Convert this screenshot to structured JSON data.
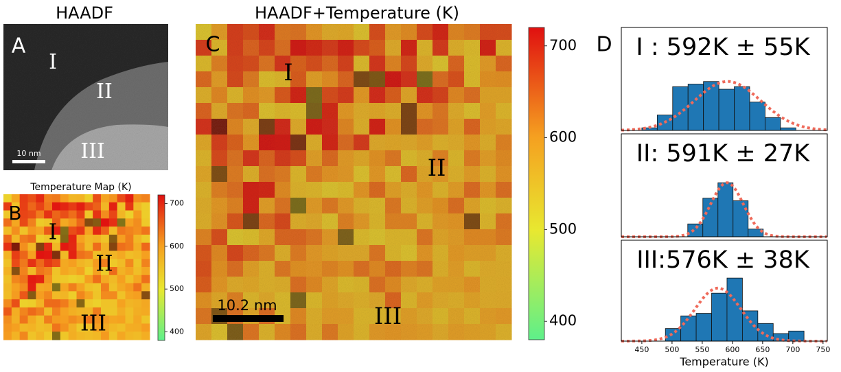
{
  "panel_a": {
    "letter": "A",
    "title": "HAADF",
    "regions": [
      "I",
      "II",
      "III"
    ],
    "scale_bar": "10 nm"
  },
  "panel_b": {
    "letter": "B",
    "title": "Temperature Map (K)",
    "regions": [
      "I",
      "II",
      "III"
    ],
    "colorbar": {
      "lim": [
        380,
        720
      ],
      "ticks": [
        400,
        500,
        600,
        700
      ]
    }
  },
  "panel_c": {
    "letter": "C",
    "title": "HAADF+Temperature (K)",
    "regions": [
      "I",
      "II",
      "III"
    ],
    "scale_bar": "10.2 nm",
    "colorbar": {
      "lim": [
        380,
        720
      ],
      "ticks": [
        400,
        500,
        600,
        700
      ]
    }
  },
  "panel_d": {
    "letter": "D"
  },
  "chart_data": [
    {
      "type": "histogram",
      "title": "I : 592K ± 55K",
      "bins": [
        450,
        475.5,
        501,
        526.5,
        552,
        577.5,
        603,
        628.5,
        654,
        679.5,
        705
      ],
      "values": [
        1,
        6,
        17,
        18,
        19,
        16,
        17,
        11,
        5,
        1
      ],
      "color": "#1f77b4",
      "xlim": [
        416,
        757
      ],
      "ylim": [
        0,
        40
      ],
      "fit": {
        "mean": 592,
        "std": 55,
        "peak": 19,
        "color": "#ef6a5a"
      }
    },
    {
      "type": "histogram",
      "title": "II: 591K ± 27K",
      "bins": [
        526,
        551,
        576,
        601,
        626,
        651
      ],
      "values": [
        5,
        15,
        21,
        14,
        3
      ],
      "color": "#1f77b4",
      "xlim": [
        416,
        757
      ],
      "ylim": [
        0,
        40
      ],
      "fit": {
        "mean": 591,
        "std": 27,
        "peak": 21,
        "color": "#ef6a5a"
      }
    },
    {
      "type": "histogram",
      "title": "III:576K ± 38K",
      "bins": [
        489,
        514.5,
        540,
        565.5,
        591,
        616.5,
        642,
        667.5,
        693,
        718.5
      ],
      "values": [
        5,
        10,
        11,
        19,
        25,
        12,
        7,
        3,
        4
      ],
      "color": "#1f77b4",
      "xlim": [
        416,
        757
      ],
      "ylim": [
        0,
        40
      ],
      "xticks": [
        450,
        500,
        550,
        600,
        650,
        700,
        750
      ],
      "xlabel": "Temperature (K)",
      "fit": {
        "mean": 576,
        "std": 38,
        "peak": 21,
        "color": "#ef6a5a"
      }
    }
  ]
}
